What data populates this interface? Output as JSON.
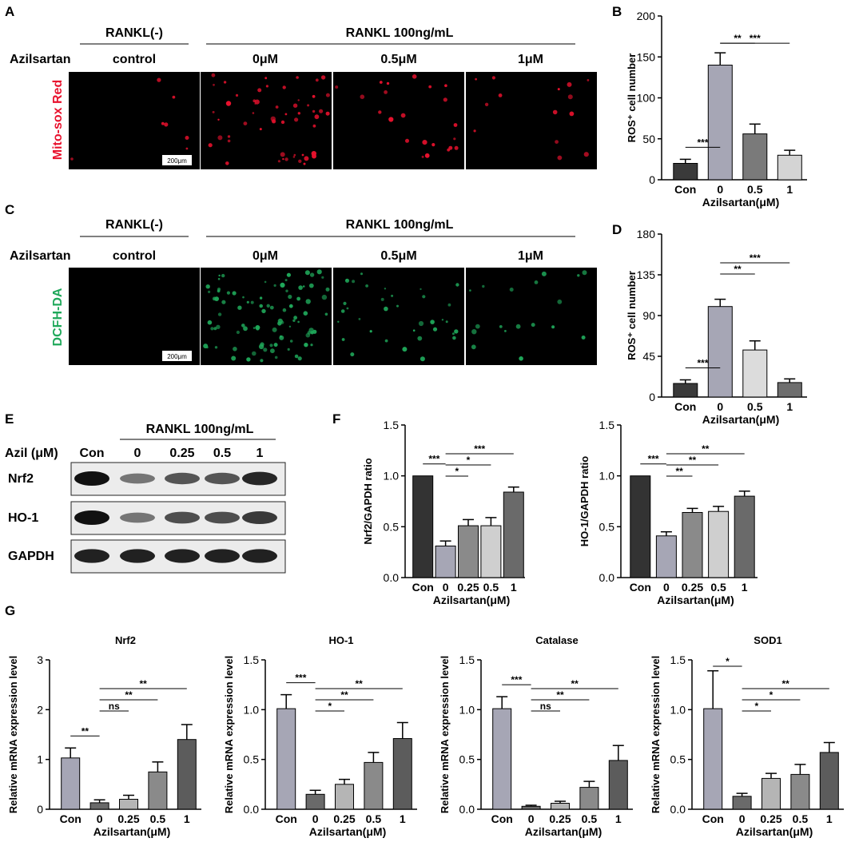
{
  "panels": {
    "a": {
      "letter": "A",
      "group_left": "RANKL(-)",
      "group_right": "RANKL 100ng/mL",
      "row_label": "Azilsartan",
      "columns": [
        "control",
        "0μM",
        "0.5μM",
        "1μM"
      ],
      "stain": "Mito-sox Red",
      "scale_bar": "200μm",
      "stain_color": "#e8112d",
      "spot_counts": [
        8,
        55,
        22,
        14
      ]
    },
    "c": {
      "letter": "C",
      "group_left": "RANKL(-)",
      "group_right": "RANKL 100ng/mL",
      "row_label": "Azilsartan",
      "columns": [
        "control",
        "0μM",
        "0.5μM",
        "1μM"
      ],
      "stain": "DCFH-DA",
      "scale_bar": "200μm",
      "stain_color": "#1fa85a",
      "spot_counts": [
        0,
        90,
        35,
        18
      ]
    },
    "e": {
      "letter": "E",
      "treatment": "RANKL 100ng/mL",
      "dose_label": "Azil (μM)",
      "lanes": [
        "Con",
        "0",
        "0.25",
        "0.5",
        "1"
      ],
      "rows": [
        {
          "name": "Nrf2",
          "intensity": [
            1.0,
            0.35,
            0.55,
            0.55,
            0.85
          ]
        },
        {
          "name": "HO-1",
          "intensity": [
            1.0,
            0.35,
            0.6,
            0.6,
            0.75
          ]
        },
        {
          "name": "GAPDH",
          "intensity": [
            0.9,
            0.9,
            0.9,
            0.9,
            0.9
          ]
        }
      ]
    },
    "g_letter": "G",
    "b_letter": "B",
    "d_letter": "D",
    "f_letter": "F"
  },
  "chart_data": [
    {
      "id": "B",
      "type": "bar",
      "categories": [
        "Con",
        "0",
        "0.5",
        "1"
      ],
      "values": [
        20,
        140,
        56,
        30
      ],
      "errors": [
        5,
        15,
        12,
        6
      ],
      "colors": [
        "#3a3a3a",
        "#a6a6b5",
        "#7a7a7a",
        "#d4d4d4"
      ],
      "ylabel": "ROS⁺ cell number",
      "xlabel": "Azilsartan(μM)",
      "ylim": [
        0,
        200
      ],
      "yticks": [
        "0",
        "50",
        "100",
        "150",
        "200"
      ],
      "sig": [
        {
          "from": 0,
          "to": 1,
          "label": "***"
        },
        {
          "from": 1,
          "to": 2,
          "label": "**"
        },
        {
          "from": 1,
          "to": 3,
          "label": "***"
        }
      ]
    },
    {
      "id": "D",
      "type": "bar",
      "categories": [
        "Con",
        "0",
        "0.5",
        "1"
      ],
      "values": [
        15,
        100,
        52,
        16
      ],
      "errors": [
        4,
        8,
        10,
        4
      ],
      "colors": [
        "#3a3a3a",
        "#a6a6b5",
        "#dcdcdc",
        "#6e6e6e"
      ],
      "ylabel": "ROS⁺ cell number",
      "xlabel": "Azilsartan(μM)",
      "ylim": [
        0,
        180
      ],
      "yticks": [
        "0",
        "45",
        "90",
        "135",
        "180"
      ],
      "sig": [
        {
          "from": 0,
          "to": 1,
          "label": "***"
        },
        {
          "from": 1,
          "to": 2,
          "label": "**"
        },
        {
          "from": 1,
          "to": 3,
          "label": "***"
        }
      ]
    },
    {
      "id": "F1",
      "type": "bar",
      "categories": [
        "Con",
        "0",
        "0.25",
        "0.5",
        "1"
      ],
      "values": [
        1.0,
        0.31,
        0.51,
        0.51,
        0.84
      ],
      "errors": [
        0,
        0.05,
        0.06,
        0.08,
        0.05
      ],
      "colors": [
        "#333333",
        "#a6a6b5",
        "#8a8a8a",
        "#cfcfcf",
        "#6a6a6a"
      ],
      "ylabel": "Nrf2/GAPDH ratio",
      "xlabel": "Azilsartan(μM)",
      "ylim": [
        0,
        1.5
      ],
      "yticks": [
        "0.0",
        "0.5",
        "1.0",
        "1.5"
      ],
      "sig": [
        {
          "from": 0,
          "to": 1,
          "label": "***"
        },
        {
          "from": 1,
          "to": 2,
          "label": "*"
        },
        {
          "from": 1,
          "to": 3,
          "label": "*"
        },
        {
          "from": 1,
          "to": 4,
          "label": "***"
        }
      ]
    },
    {
      "id": "F2",
      "type": "bar",
      "categories": [
        "Con",
        "0",
        "0.25",
        "0.5",
        "1"
      ],
      "values": [
        1.0,
        0.41,
        0.64,
        0.65,
        0.8
      ],
      "errors": [
        0,
        0.04,
        0.04,
        0.05,
        0.05
      ],
      "colors": [
        "#333333",
        "#a6a6b5",
        "#8a8a8a",
        "#cfcfcf",
        "#6a6a6a"
      ],
      "ylabel": "HO-1/GAPDH ratio",
      "xlabel": "Azilsartan(μM)",
      "ylim": [
        0,
        1.5
      ],
      "yticks": [
        "0.0",
        "0.5",
        "1.0",
        "1.5"
      ],
      "sig": [
        {
          "from": 0,
          "to": 1,
          "label": "***"
        },
        {
          "from": 1,
          "to": 2,
          "label": "**"
        },
        {
          "from": 1,
          "to": 3,
          "label": "**"
        },
        {
          "from": 1,
          "to": 4,
          "label": "**"
        }
      ]
    },
    {
      "id": "G1",
      "type": "bar",
      "title": "Nrf2",
      "categories": [
        "Con",
        "0",
        "0.25",
        "0.5",
        "1"
      ],
      "values": [
        1.03,
        0.13,
        0.2,
        0.75,
        1.4
      ],
      "errors": [
        0.2,
        0.06,
        0.08,
        0.2,
        0.3
      ],
      "colors": [
        "#a6a6b5",
        "#6a6a6a",
        "#b5b5b5",
        "#8a8a8a",
        "#5c5c5c"
      ],
      "ylabel": "Relative mRNA expression level",
      "xlabel": "Azilsartan(μM)",
      "ylim": [
        0,
        3
      ],
      "yticks": [
        "0",
        "1",
        "2",
        "3"
      ],
      "sig": [
        {
          "from": 0,
          "to": 1,
          "label": "**"
        },
        {
          "from": 1,
          "to": 2,
          "label": "ns"
        },
        {
          "from": 1,
          "to": 3,
          "label": "**"
        },
        {
          "from": 1,
          "to": 4,
          "label": "**"
        }
      ]
    },
    {
      "id": "G2",
      "type": "bar",
      "title": "HO-1",
      "categories": [
        "Con",
        "0",
        "0.25",
        "0.5",
        "1"
      ],
      "values": [
        1.01,
        0.15,
        0.25,
        0.47,
        0.71
      ],
      "errors": [
        0.14,
        0.04,
        0.05,
        0.1,
        0.16
      ],
      "colors": [
        "#a6a6b5",
        "#6a6a6a",
        "#b5b5b5",
        "#8a8a8a",
        "#5c5c5c"
      ],
      "ylabel": "Relative mRNA expression level",
      "xlabel": "Azilsartan(μM)",
      "ylim": [
        0,
        1.5
      ],
      "yticks": [
        "0.0",
        "0.5",
        "1.0",
        "1.5"
      ],
      "sig": [
        {
          "from": 0,
          "to": 1,
          "label": "***"
        },
        {
          "from": 1,
          "to": 2,
          "label": "*"
        },
        {
          "from": 1,
          "to": 3,
          "label": "**"
        },
        {
          "from": 1,
          "to": 4,
          "label": "**"
        }
      ]
    },
    {
      "id": "G3",
      "type": "bar",
      "title": "Catalase",
      "categories": [
        "Con",
        "0",
        "0.25",
        "0.5",
        "1"
      ],
      "values": [
        1.01,
        0.03,
        0.06,
        0.22,
        0.49
      ],
      "errors": [
        0.12,
        0.01,
        0.02,
        0.06,
        0.15
      ],
      "colors": [
        "#a6a6b5",
        "#6a6a6a",
        "#b5b5b5",
        "#8a8a8a",
        "#5c5c5c"
      ],
      "ylabel": "Relative mRNA expression level",
      "xlabel": "Azilsartan(μM)",
      "ylim": [
        0,
        1.5
      ],
      "yticks": [
        "0.0",
        "0.5",
        "1.0",
        "1.5"
      ],
      "sig": [
        {
          "from": 0,
          "to": 1,
          "label": "***"
        },
        {
          "from": 1,
          "to": 2,
          "label": "ns"
        },
        {
          "from": 1,
          "to": 3,
          "label": "**"
        },
        {
          "from": 1,
          "to": 4,
          "label": "**"
        }
      ]
    },
    {
      "id": "G4",
      "type": "bar",
      "title": "SOD1",
      "categories": [
        "Con",
        "0",
        "0.25",
        "0.5",
        "1"
      ],
      "values": [
        1.01,
        0.13,
        0.31,
        0.35,
        0.57
      ],
      "errors": [
        0.38,
        0.03,
        0.05,
        0.1,
        0.1
      ],
      "colors": [
        "#a6a6b5",
        "#6a6a6a",
        "#b5b5b5",
        "#8a8a8a",
        "#5c5c5c"
      ],
      "ylabel": "Relative mRNA expression level",
      "xlabel": "Azilsartan(μM)",
      "ylim": [
        0,
        1.5
      ],
      "yticks": [
        "0.0",
        "0.5",
        "1.0",
        "1.5"
      ],
      "sig": [
        {
          "from": 0,
          "to": 1,
          "label": "*"
        },
        {
          "from": 1,
          "to": 2,
          "label": "*"
        },
        {
          "from": 1,
          "to": 3,
          "label": "*"
        },
        {
          "from": 1,
          "to": 4,
          "label": "**"
        }
      ]
    }
  ]
}
